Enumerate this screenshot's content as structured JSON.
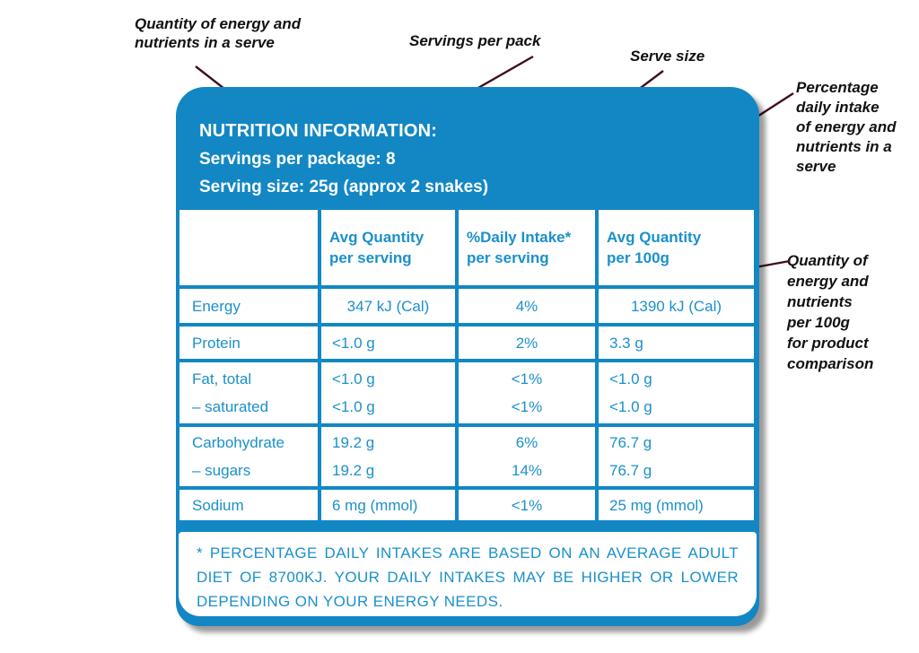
{
  "figure": {
    "annotations": [
      {
        "id": "serve-quantity",
        "text": "Quantity of energy and\nnutrients in a serve"
      },
      {
        "id": "servings-per-pack",
        "text": "Servings per pack"
      },
      {
        "id": "serve-size",
        "text": "Serve size"
      },
      {
        "id": "percent-daily-intake",
        "text": "Percentage\ndaily intake\nof energy and\nnutrients in a\nserve"
      },
      {
        "id": "per-100g-quantity",
        "text": "Quantity of\nenergy and\nnutrients\nper 100g\nfor product\ncomparison"
      }
    ]
  },
  "panel": {
    "title": "NUTRITION INFORMATION:",
    "servings_per_package": "Servings per package: 8",
    "serving_size": "Serving size: 25g (approx 2 snakes)",
    "table": {
      "columns": [
        "",
        "Avg Quantity\nper serving",
        "%Daily Intake*\nper serving",
        "Avg Quantity\nper 100g"
      ],
      "rows": [
        {
          "lines": [
            {
              "label": "Energy",
              "per_serving": "347 kJ (Cal)",
              "daily_intake": "4%",
              "per_100g": "1390 kJ (Cal)"
            }
          ]
        },
        {
          "lines": [
            {
              "label": "Protein",
              "per_serving": "<1.0 g",
              "daily_intake": "2%",
              "per_100g": "3.3 g"
            }
          ]
        },
        {
          "lines": [
            {
              "label": "Fat, total",
              "per_serving": "<1.0 g",
              "daily_intake": "<1%",
              "per_100g": "<1.0 g"
            },
            {
              "label": "– saturated",
              "per_serving": "<1.0 g",
              "daily_intake": "<1%",
              "per_100g": "<1.0 g"
            }
          ]
        },
        {
          "lines": [
            {
              "label": "Carbohydrate",
              "per_serving": "19.2 g",
              "daily_intake": "6%",
              "per_100g": "76.7 g"
            },
            {
              "label": "– sugars",
              "per_serving": "19.2 g",
              "daily_intake": "14%",
              "per_100g": "76.7 g"
            }
          ]
        },
        {
          "lines": [
            {
              "label": "Sodium",
              "per_serving": "6 mg (mmol)",
              "daily_intake": "<1%",
              "per_100g": "25 mg (mmol)"
            }
          ]
        }
      ]
    },
    "footnote": "* PERCENTAGE DAILY INTAKES ARE BASED ON AN AVERAGE ADULT DIET OF 8700KJ. YOUR DAILY INTAKES MAY BE HIGHER OR LOWER DEPENDING ON YOUR ENERGY NEEDS."
  },
  "colors": {
    "panel_blue": "#1287c4",
    "table_text_blue": "#1b90ca",
    "arrow_line": "#400d1f",
    "arrowhead": "#000000",
    "annotation_text": "#111111"
  }
}
